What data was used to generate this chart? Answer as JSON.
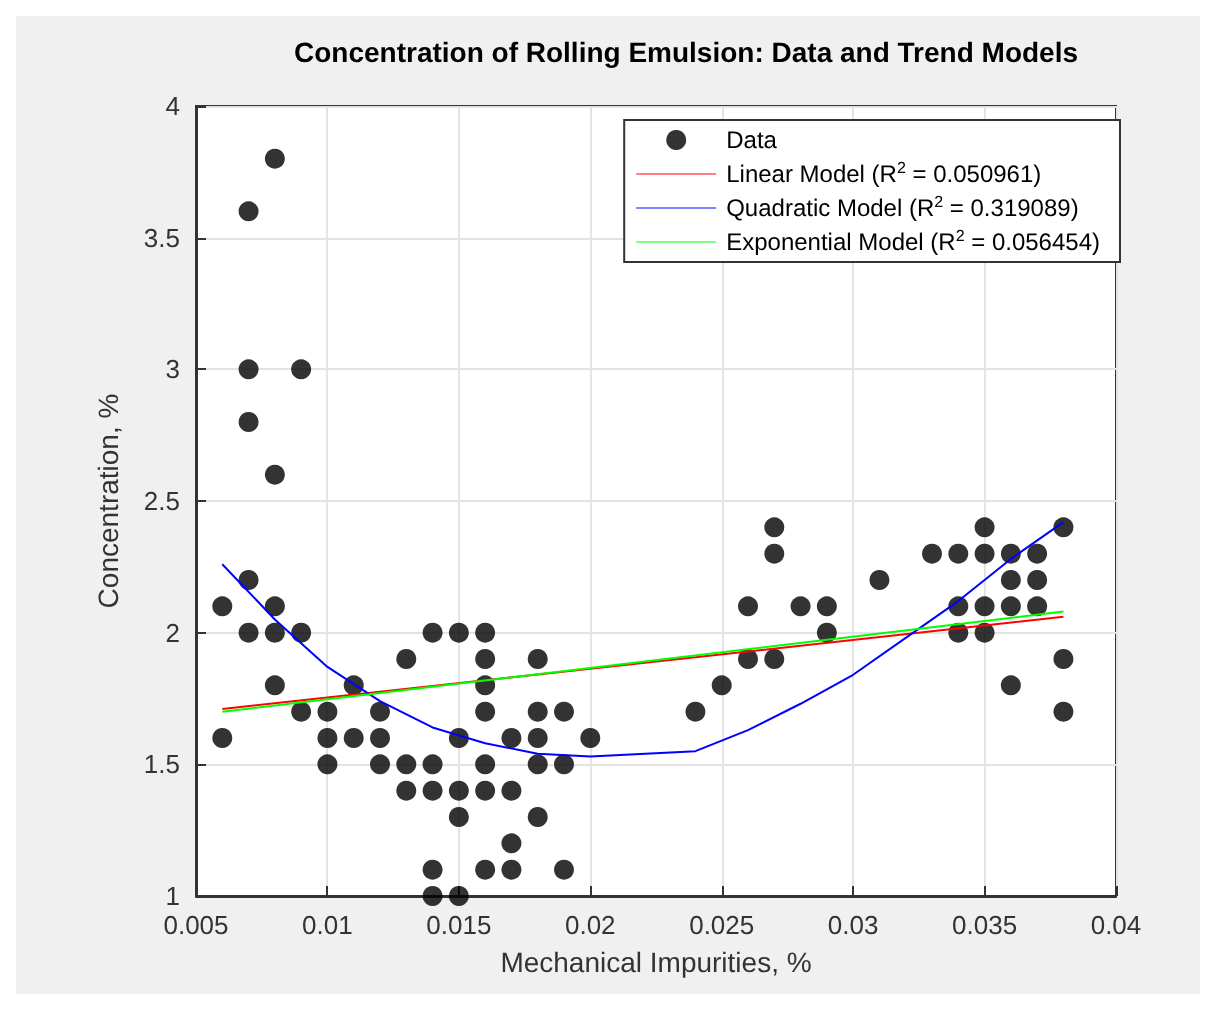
{
  "chart_data": {
    "type": "scatter",
    "title": "Concentration of Rolling Emulsion: Data and Trend Models",
    "xlabel": "Mechanical Impurities, %",
    "ylabel": "Concentration, %",
    "xlim": [
      0.005,
      0.04
    ],
    "ylim": [
      1,
      4
    ],
    "xticks": [
      0.005,
      0.01,
      0.015,
      0.02,
      0.025,
      0.03,
      0.035,
      0.04
    ],
    "yticks": [
      1,
      1.5,
      2,
      2.5,
      3,
      3.5,
      4
    ],
    "grid": true,
    "legend": "top right",
    "series": [
      {
        "name": "Data",
        "marker": "circle",
        "color": "#000000",
        "x": [
          0.006,
          0.006,
          0.007,
          0.007,
          0.007,
          0.007,
          0.007,
          0.008,
          0.008,
          0.008,
          0.008,
          0.008,
          0.009,
          0.009,
          0.009,
          0.01,
          0.01,
          0.01,
          0.011,
          0.011,
          0.012,
          0.012,
          0.012,
          0.013,
          0.013,
          0.013,
          0.014,
          0.014,
          0.014,
          0.014,
          0.014,
          0.015,
          0.015,
          0.015,
          0.015,
          0.015,
          0.016,
          0.016,
          0.016,
          0.016,
          0.016,
          0.016,
          0.016,
          0.017,
          0.017,
          0.017,
          0.017,
          0.018,
          0.018,
          0.018,
          0.018,
          0.018,
          0.019,
          0.019,
          0.019,
          0.02,
          0.024,
          0.025,
          0.026,
          0.026,
          0.027,
          0.027,
          0.027,
          0.028,
          0.029,
          0.029,
          0.031,
          0.033,
          0.034,
          0.034,
          0.034,
          0.035,
          0.035,
          0.035,
          0.035,
          0.036,
          0.036,
          0.036,
          0.036,
          0.037,
          0.037,
          0.037,
          0.038,
          0.038,
          0.038
        ],
        "values": [
          2.1,
          1.6,
          3.6,
          3.0,
          2.8,
          2.2,
          2.0,
          3.8,
          2.6,
          2.1,
          2.0,
          1.8,
          3.0,
          2.0,
          1.7,
          1.7,
          1.6,
          1.5,
          1.8,
          1.6,
          1.7,
          1.6,
          1.5,
          1.9,
          1.5,
          1.4,
          2.0,
          1.5,
          1.4,
          1.1,
          1.0,
          2.0,
          1.6,
          1.4,
          1.3,
          1.0,
          2.0,
          1.9,
          1.8,
          1.7,
          1.5,
          1.4,
          1.1,
          1.6,
          1.4,
          1.2,
          1.1,
          1.9,
          1.7,
          1.6,
          1.5,
          1.3,
          1.7,
          1.5,
          1.1,
          1.6,
          1.7,
          1.8,
          2.1,
          1.9,
          2.4,
          2.3,
          1.9,
          2.1,
          2.1,
          2.0,
          2.2,
          2.3,
          2.3,
          2.1,
          2.0,
          2.4,
          2.3,
          2.1,
          2.0,
          2.3,
          2.2,
          2.1,
          1.8,
          2.3,
          2.2,
          2.1,
          2.4,
          1.9,
          1.7
        ]
      },
      {
        "name": "Linear Model (R$^{2}$ = 0.050961)",
        "type": "line",
        "marker": "none",
        "color": "#ff0000",
        "x": [
          0.006,
          0.038
        ],
        "values": [
          1.71,
          2.06
        ]
      },
      {
        "name": "Quadratic Model (R$^{2}$ = 0.319089)",
        "type": "line",
        "marker": "none",
        "color": "#0000ff",
        "x": [
          0.006,
          0.008,
          0.01,
          0.012,
          0.014,
          0.016,
          0.018,
          0.02,
          0.024,
          0.026,
          0.028,
          0.03,
          0.032,
          0.034,
          0.036,
          0.038
        ],
        "values": [
          2.26,
          2.05,
          1.87,
          1.74,
          1.64,
          1.58,
          1.54,
          1.53,
          1.55,
          1.63,
          1.73,
          1.84,
          1.98,
          2.12,
          2.28,
          2.42
        ]
      },
      {
        "name": "Exponential Model (R$^{2}$ = 0.056454)",
        "type": "line",
        "marker": "none",
        "color": "#00ff00",
        "x": [
          0.006,
          0.038
        ],
        "values": [
          1.7,
          2.08
        ]
      }
    ]
  }
}
